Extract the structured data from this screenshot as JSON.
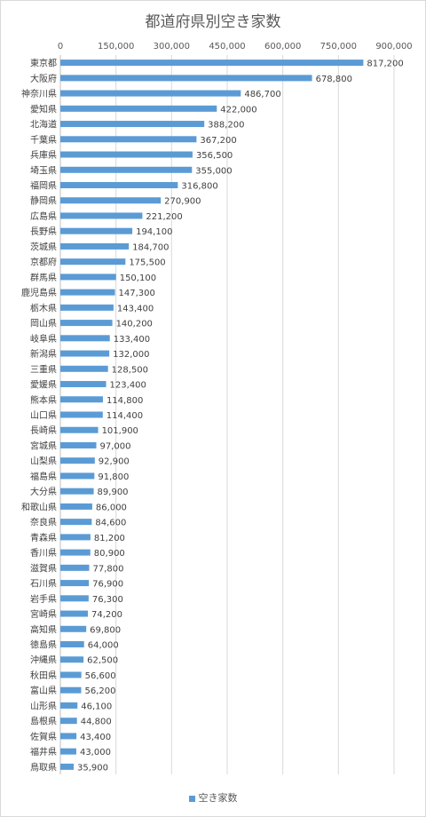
{
  "chart_data": {
    "type": "bar",
    "orientation": "horizontal",
    "title": "都道府県別空き家数",
    "series": [
      {
        "name": "空き家数",
        "color": "#5b9bd5"
      }
    ],
    "categories": [
      "東京都",
      "大阪府",
      "神奈川県",
      "愛知県",
      "北海道",
      "千葉県",
      "兵庫県",
      "埼玉県",
      "福岡県",
      "静岡県",
      "広島県",
      "長野県",
      "茨城県",
      "京都府",
      "群馬県",
      "鹿児島県",
      "栃木県",
      "岡山県",
      "岐阜県",
      "新潟県",
      "三重県",
      "愛媛県",
      "熊本県",
      "山口県",
      "長崎県",
      "宮城県",
      "山梨県",
      "福島県",
      "大分県",
      "和歌山県",
      "奈良県",
      "青森県",
      "香川県",
      "滋賀県",
      "石川県",
      "岩手県",
      "宮崎県",
      "高知県",
      "徳島県",
      "沖縄県",
      "秋田県",
      "富山県",
      "山形県",
      "島根県",
      "佐賀県",
      "福井県",
      "鳥取県"
    ],
    "values": [
      817200,
      678800,
      486700,
      422000,
      388200,
      367200,
      356500,
      355000,
      316800,
      270900,
      221200,
      194100,
      184700,
      175500,
      150100,
      147300,
      143400,
      140200,
      133400,
      132000,
      128500,
      123400,
      114800,
      114400,
      101900,
      97000,
      92900,
      91800,
      89900,
      86000,
      84600,
      81200,
      80900,
      77800,
      76900,
      76300,
      74200,
      69800,
      64000,
      62500,
      56600,
      56200,
      46100,
      44800,
      43400,
      43000,
      35900
    ],
    "value_labels": [
      "817,200",
      "678,800",
      "486,700",
      "422,000",
      "388,200",
      "367,200",
      "356,500",
      "355,000",
      "316,800",
      "270,900",
      "221,200",
      "194,100",
      "184,700",
      "175,500",
      "150,100",
      "147,300",
      "143,400",
      "140,200",
      "133,400",
      "132,000",
      "128,500",
      "123,400",
      "114,800",
      "114,400",
      "101,900",
      "97,000",
      "92,900",
      "91,800",
      "89,900",
      "86,000",
      "84,600",
      "81,200",
      "80,900",
      "77,800",
      "76,900",
      "76,300",
      "74,200",
      "69,800",
      "64,000",
      "62,500",
      "56,600",
      "56,200",
      "46,100",
      "44,800",
      "43,400",
      "43,000",
      "35,900"
    ],
    "xlim": [
      0,
      900000
    ],
    "x_ticks": [
      0,
      150000,
      300000,
      450000,
      600000,
      750000,
      900000
    ],
    "x_tick_labels": [
      "0",
      "150,000",
      "300,000",
      "450,000",
      "600,000",
      "750,000",
      "900,000"
    ],
    "x_axis_position": "top",
    "grid": true,
    "legend_position": "bottom",
    "legend_label": "空き家数"
  }
}
